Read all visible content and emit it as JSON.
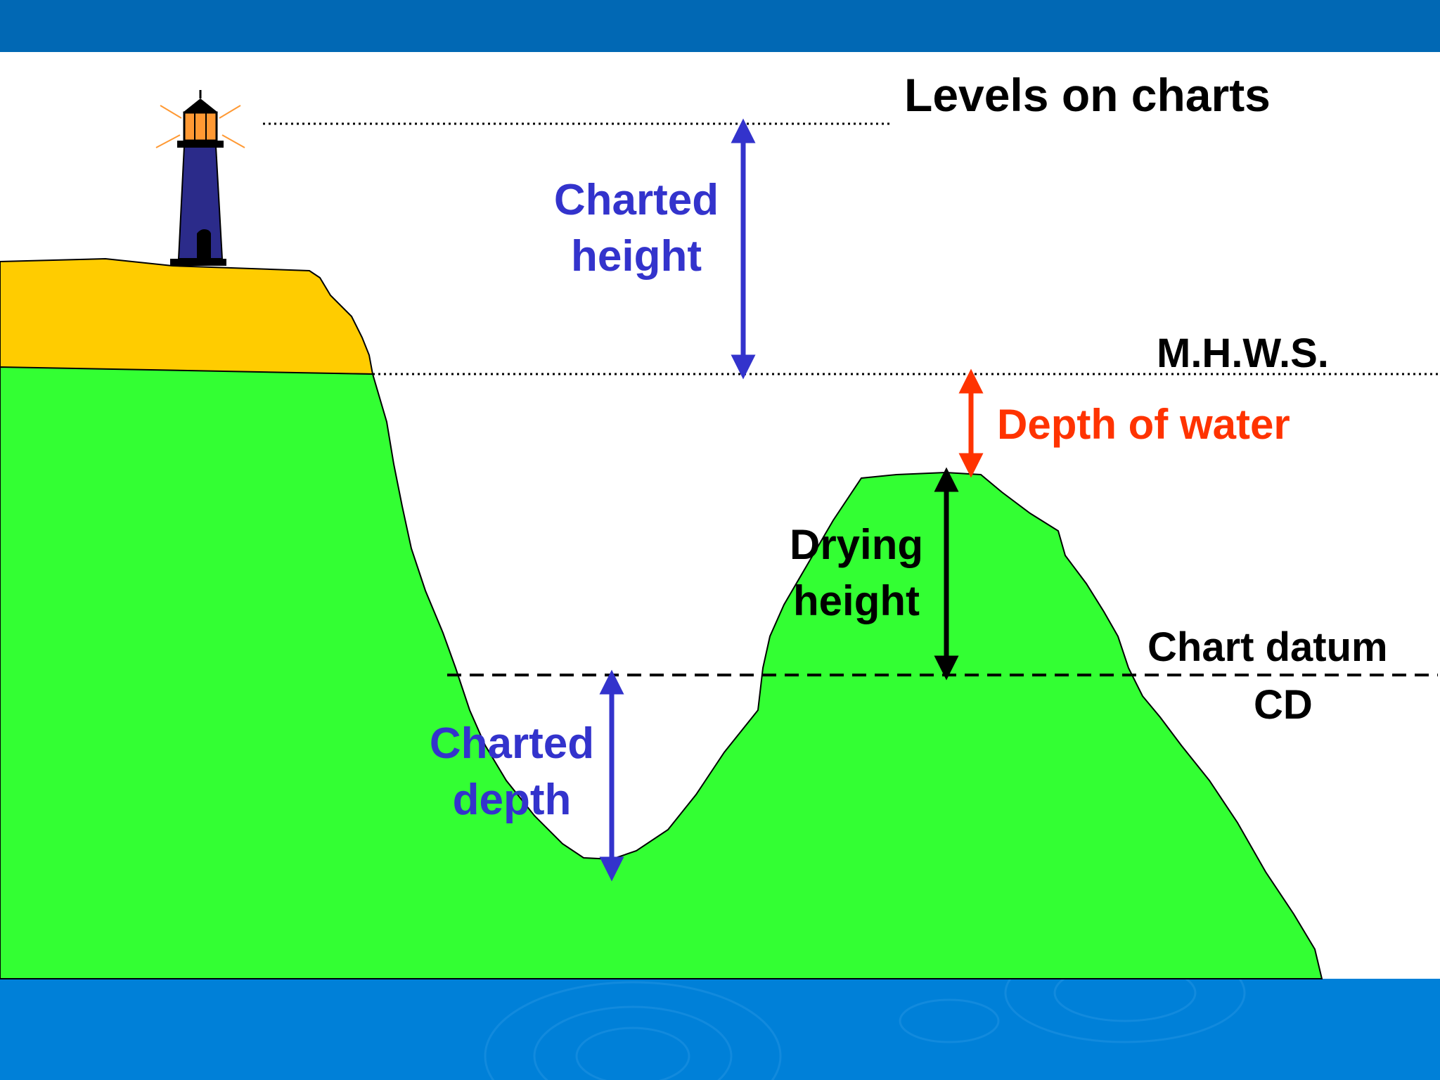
{
  "title": "Levels on charts",
  "levels": {
    "mhws": "M.H.W.S.",
    "chart_datum": "Chart datum",
    "cd": "CD"
  },
  "annotations": {
    "charted_height": [
      "Charted",
      "height"
    ],
    "depth_of_water": "Depth of water",
    "drying_height": [
      "Drying",
      "height"
    ],
    "charted_depth": [
      "Charted",
      "depth"
    ]
  },
  "colors": {
    "header_bar": "#0168b4",
    "footer_band": "#0080d8",
    "land_yellow": "#ffcc00",
    "seabed_green": "#33ff33",
    "arrow_blue": "#3333cc",
    "arrow_red": "#ff3300",
    "lighthouse": "#2b2b8a"
  }
}
